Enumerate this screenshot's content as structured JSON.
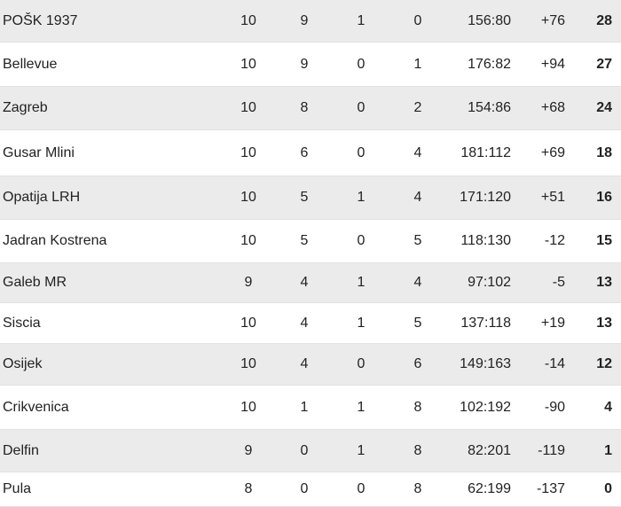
{
  "table": {
    "rows": [
      [
        "POŠK 1937",
        "10",
        "9",
        "1",
        "0",
        "156:80",
        "+76",
        "28"
      ],
      [
        "Bellevue",
        "10",
        "9",
        "0",
        "1",
        "176:82",
        "+94",
        "27"
      ],
      [
        "Zagreb",
        "10",
        "8",
        "0",
        "2",
        "154:86",
        "+68",
        "24"
      ],
      [
        "Gusar Mlini",
        "10",
        "6",
        "0",
        "4",
        "181:112",
        "+69",
        "18"
      ],
      [
        "Opatija LRH",
        "10",
        "5",
        "1",
        "4",
        "171:120",
        "+51",
        "16"
      ],
      [
        "Jadran Kostrena",
        "10",
        "5",
        "0",
        "5",
        "118:130",
        "-12",
        "15"
      ],
      [
        "Galeb MR",
        "9",
        "4",
        "1",
        "4",
        "97:102",
        "-5",
        "13"
      ],
      [
        "Siscia",
        "10",
        "4",
        "1",
        "5",
        "137:118",
        "+19",
        "13"
      ],
      [
        "Osijek",
        "10",
        "4",
        "0",
        "6",
        "149:163",
        "-14",
        "12"
      ],
      [
        "Crikvenica",
        "10",
        "1",
        "1",
        "8",
        "102:192",
        "-90",
        "4"
      ],
      [
        "Delfin",
        "9",
        "0",
        "1",
        "8",
        "82:201",
        "-119",
        "1"
      ],
      [
        "Pula",
        "8",
        "0",
        "0",
        "8",
        "62:199",
        "-137",
        "0"
      ]
    ]
  }
}
